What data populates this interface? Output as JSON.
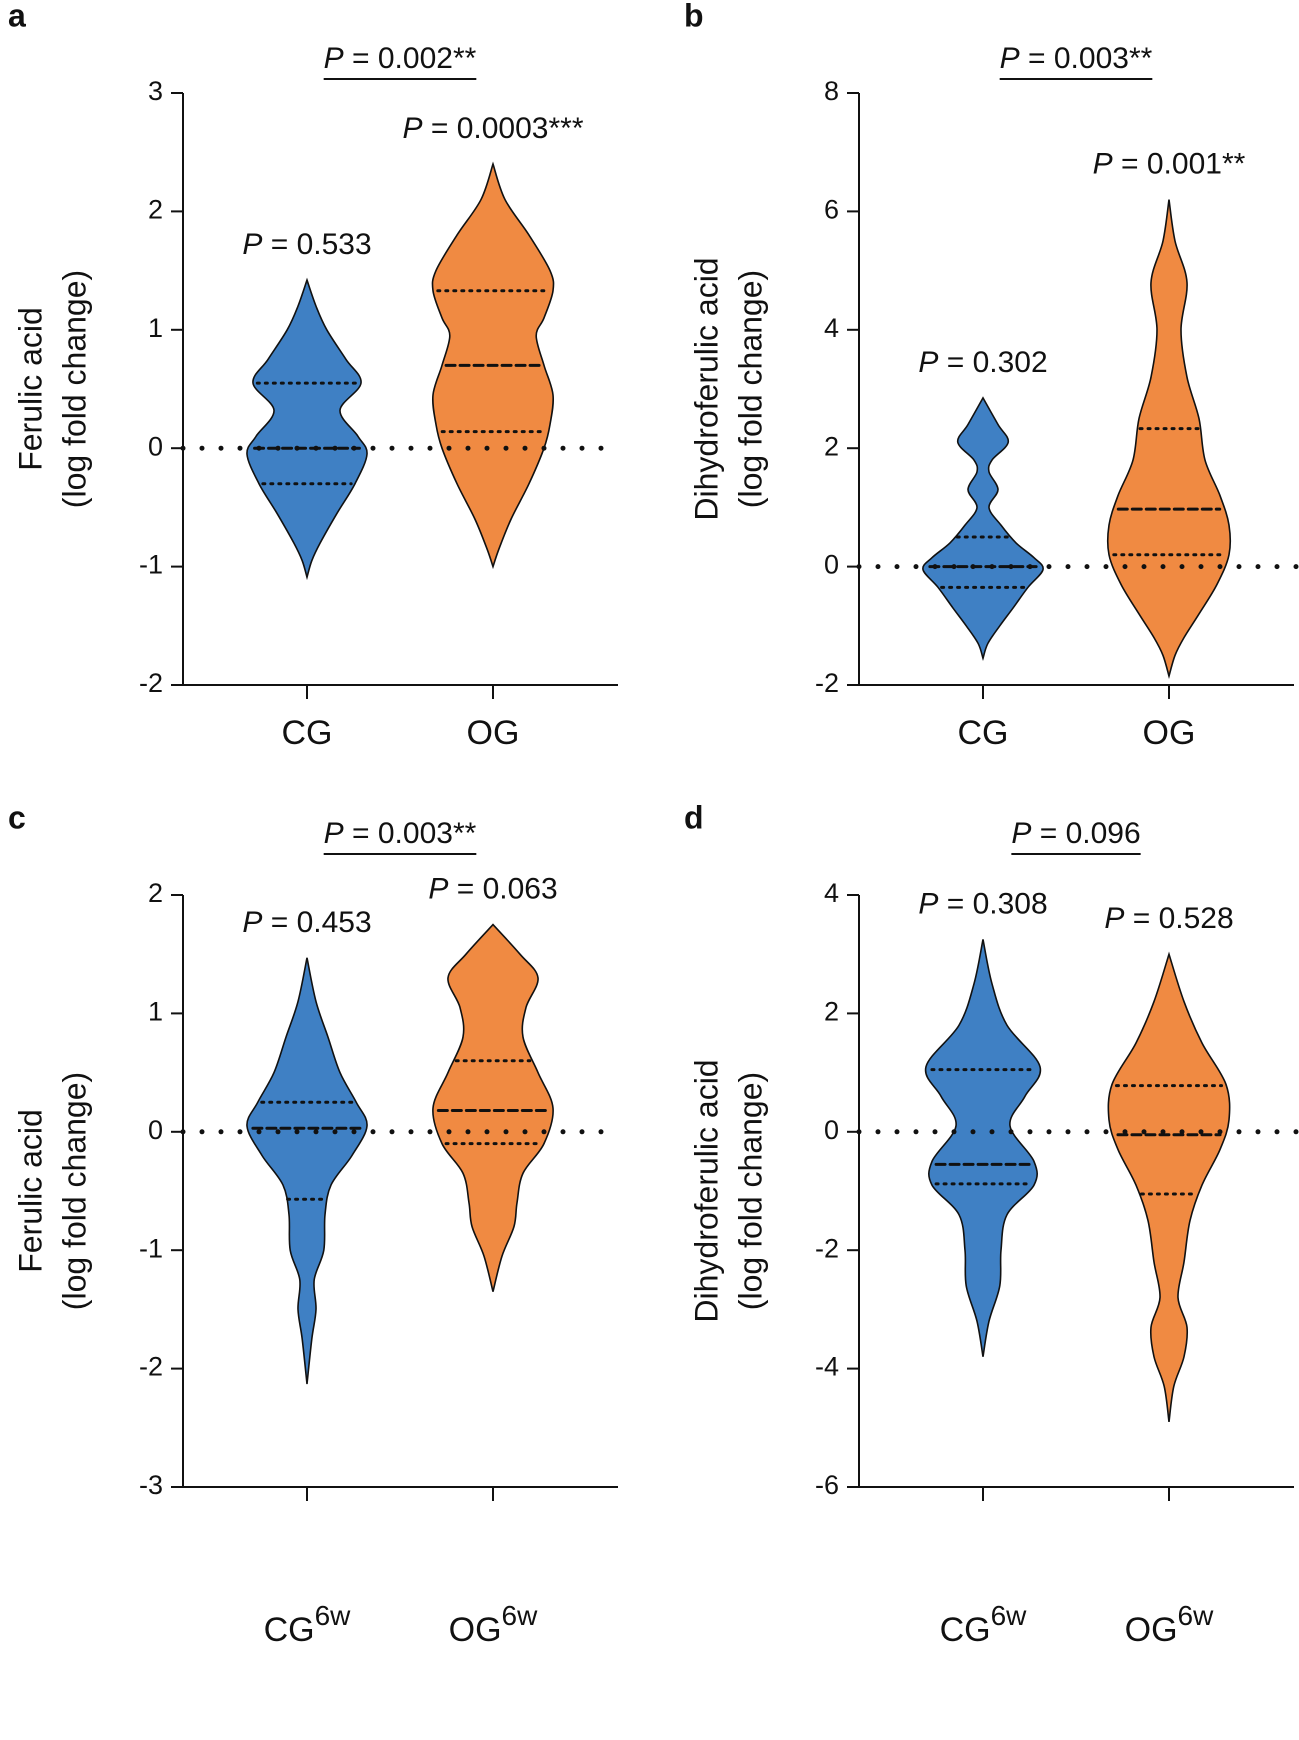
{
  "chart_data": [
    {
      "type": "violin",
      "panel_label": "a",
      "ylabel": [
        "Ferulic acid",
        "(log fold change)"
      ],
      "categories": [
        "CG",
        "OG"
      ],
      "ylim": [
        -2,
        3
      ],
      "yticks": [
        -2,
        -1,
        0,
        1,
        2,
        3
      ],
      "reference_line": 0,
      "comparison_label": "P = 0.002**",
      "violins": [
        {
          "color": "#3f80c4",
          "p_label": "P = 0.533",
          "min": -1.09,
          "max": 1.42,
          "q1": -0.3,
          "median": 0,
          "q3": 0.55,
          "profile_y": [
            1.2,
            1.0,
            0.75,
            0.55,
            0.32,
            0.1,
            -0.05,
            -0.3,
            -0.55,
            -0.8,
            -0.95
          ],
          "profile_density": [
            0.15,
            0.33,
            0.65,
            0.9,
            0.55,
            0.85,
            1.0,
            0.8,
            0.5,
            0.22,
            0.08
          ]
        },
        {
          "color": "#f08a42",
          "p_label": "P = 0.0003***",
          "min": -1.0,
          "max": 2.4,
          "q1": 0.14,
          "median": 0.7,
          "q3": 1.33,
          "profile_y": [
            2.1,
            1.8,
            1.5,
            1.33,
            1.1,
            0.95,
            0.7,
            0.45,
            0.2,
            0.0,
            -0.3,
            -0.6,
            -0.85
          ],
          "profile_density": [
            0.2,
            0.6,
            0.95,
            1.0,
            0.85,
            0.72,
            0.85,
            1.0,
            0.95,
            0.85,
            0.6,
            0.3,
            0.1
          ]
        }
      ]
    },
    {
      "type": "violin",
      "panel_label": "b",
      "ylabel": [
        "Dihydroferulic acid",
        "(log fold change)"
      ],
      "categories": [
        "CG",
        "OG"
      ],
      "ylim": [
        -2,
        8
      ],
      "yticks": [
        -2,
        0,
        2,
        4,
        6,
        8
      ],
      "reference_line": 0,
      "comparison_label": "P = 0.003**",
      "violins": [
        {
          "color": "#3f80c4",
          "p_label": "P = 0.302",
          "min": -1.55,
          "max": 2.85,
          "q1": -0.35,
          "median": 0,
          "q3": 0.5,
          "profile_y": [
            2.4,
            2.1,
            1.8,
            1.6,
            1.3,
            1.0,
            0.7,
            0.4,
            0.15,
            -0.05,
            -0.35,
            -0.7,
            -1.0,
            -1.3
          ],
          "profile_density": [
            0.25,
            0.42,
            0.15,
            0.1,
            0.25,
            0.1,
            0.3,
            0.55,
            0.85,
            1.0,
            0.75,
            0.5,
            0.28,
            0.08
          ]
        },
        {
          "color": "#f08a42",
          "p_label": "P = 0.001**",
          "min": -1.85,
          "max": 6.2,
          "q1": 0.2,
          "median": 0.97,
          "q3": 2.33,
          "profile_y": [
            5.5,
            4.8,
            4.0,
            3.2,
            2.5,
            1.8,
            1.2,
            0.7,
            0.2,
            -0.3,
            -0.8,
            -1.2,
            -1.5
          ],
          "profile_density": [
            0.1,
            0.3,
            0.2,
            0.3,
            0.5,
            0.6,
            0.85,
            1.0,
            1.0,
            0.8,
            0.5,
            0.25,
            0.1
          ]
        }
      ]
    },
    {
      "type": "violin",
      "panel_label": "c",
      "ylabel": [
        "Ferulic acid",
        "(log fold change)"
      ],
      "categories": [
        "CG",
        "OG"
      ],
      "category_superscript": "6w",
      "ylim": [
        -3,
        2
      ],
      "yticks": [
        -3,
        -2,
        -1,
        0,
        1,
        2
      ],
      "reference_line": 0,
      "comparison_label": "P = 0.003**",
      "violins": [
        {
          "color": "#3f80c4",
          "p_label": "P = 0.453",
          "min": -2.13,
          "max": 1.47,
          "q1": -0.57,
          "median": 0.03,
          "q3": 0.25,
          "profile_y": [
            1.1,
            0.8,
            0.5,
            0.25,
            0.05,
            -0.2,
            -0.45,
            -0.7,
            -1.0,
            -1.25,
            -1.5,
            -1.75
          ],
          "profile_density": [
            0.15,
            0.35,
            0.55,
            0.82,
            1.0,
            0.75,
            0.4,
            0.3,
            0.28,
            0.12,
            0.15,
            0.08
          ]
        },
        {
          "color": "#f08a42",
          "p_label": "P = 0.063",
          "min": -1.35,
          "max": 1.75,
          "q1": -0.1,
          "median": 0.18,
          "q3": 0.6,
          "profile_y": [
            1.5,
            1.3,
            1.05,
            0.8,
            0.5,
            0.2,
            -0.1,
            -0.35,
            -0.6,
            -0.8,
            -1.05
          ],
          "profile_density": [
            0.45,
            0.75,
            0.55,
            0.5,
            0.75,
            1.0,
            0.85,
            0.5,
            0.4,
            0.35,
            0.15
          ]
        }
      ]
    },
    {
      "type": "violin",
      "panel_label": "d",
      "ylabel": [
        "Dihydroferulic acid",
        "(log fold change)"
      ],
      "categories": [
        "CG",
        "OG"
      ],
      "category_superscript": "6w",
      "ylim": [
        -6,
        4
      ],
      "yticks": [
        -6,
        -4,
        -2,
        0,
        2,
        4
      ],
      "reference_line": 0,
      "comparison_label": "P = 0.096",
      "violins": [
        {
          "color": "#3f80c4",
          "p_label": "P = 0.308",
          "min": -3.8,
          "max": 3.25,
          "q1": -0.88,
          "median": -0.55,
          "q3": 1.05,
          "profile_y": [
            2.5,
            1.8,
            1.1,
            0.6,
            0.1,
            -0.5,
            -0.9,
            -1.4,
            -2.0,
            -2.6,
            -3.2
          ],
          "profile_density": [
            0.15,
            0.4,
            0.95,
            0.7,
            0.45,
            0.85,
            0.85,
            0.4,
            0.3,
            0.28,
            0.1
          ]
        },
        {
          "color": "#f08a42",
          "p_label": "P = 0.528",
          "min": -4.9,
          "max": 3.0,
          "q1": -1.05,
          "median": -0.05,
          "q3": 0.78,
          "profile_y": [
            2.2,
            1.5,
            0.8,
            0.2,
            -0.3,
            -0.9,
            -1.5,
            -2.2,
            -2.8,
            -3.3,
            -3.8,
            -4.3
          ],
          "profile_density": [
            0.25,
            0.55,
            0.95,
            1.0,
            0.85,
            0.55,
            0.35,
            0.25,
            0.15,
            0.3,
            0.25,
            0.08
          ]
        }
      ]
    }
  ]
}
